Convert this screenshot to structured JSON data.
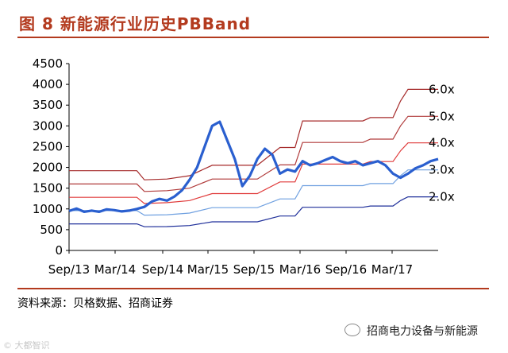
{
  "header": {
    "title": "图 8   新能源行业历史PBBand"
  },
  "footer": {
    "source": "资料来源：贝格数据、招商证券",
    "wechat_account": "招商电力设备与新能源",
    "watermark": "© 大都智识"
  },
  "chart_data": {
    "type": "line",
    "title": "",
    "xlabel": "",
    "ylabel": "",
    "ylim": [
      0,
      4500
    ],
    "yticks": [
      0,
      500,
      1000,
      1500,
      2000,
      2500,
      3000,
      3500,
      4000,
      4500
    ],
    "xticks": [
      "Sep/13",
      "Mar/14",
      "Sep/14",
      "Mar/15",
      "Sep/15",
      "Mar/16",
      "Sep/16",
      "Mar/17"
    ],
    "xrange": [
      "2013-09",
      "2017-10"
    ],
    "grid": false,
    "band_labels": [
      "6.0x",
      "5.0x",
      "4.0x",
      "3.0x",
      "2.0x"
    ],
    "bands": [
      {
        "name": "6.0x",
        "color": "#a52a2a",
        "points": [
          [
            "2013-09",
            1920
          ],
          [
            "2014-06",
            1920
          ],
          [
            "2014-07",
            1700
          ],
          [
            "2014-10",
            1720
          ],
          [
            "2015-01",
            1800
          ],
          [
            "2015-04",
            2050
          ],
          [
            "2015-10",
            2050
          ],
          [
            "2016-01",
            2480
          ],
          [
            "2016-03",
            2480
          ],
          [
            "2016-04",
            3120
          ],
          [
            "2016-12",
            3120
          ],
          [
            "2017-01",
            3200
          ],
          [
            "2017-04",
            3200
          ],
          [
            "2017-05",
            3600
          ],
          [
            "2017-06",
            3880
          ],
          [
            "2017-10",
            3880
          ]
        ]
      },
      {
        "name": "5.0x",
        "color": "#b03a3a",
        "points": [
          [
            "2013-09",
            1600
          ],
          [
            "2014-06",
            1600
          ],
          [
            "2014-07",
            1420
          ],
          [
            "2014-10",
            1440
          ],
          [
            "2015-01",
            1500
          ],
          [
            "2015-04",
            1720
          ],
          [
            "2015-10",
            1720
          ],
          [
            "2016-01",
            2060
          ],
          [
            "2016-03",
            2060
          ],
          [
            "2016-04",
            2600
          ],
          [
            "2016-12",
            2600
          ],
          [
            "2017-01",
            2680
          ],
          [
            "2017-04",
            2680
          ],
          [
            "2017-05",
            3000
          ],
          [
            "2017-06",
            3230
          ],
          [
            "2017-10",
            3230
          ]
        ]
      },
      {
        "name": "4.0x",
        "color": "#e03a3a",
        "points": [
          [
            "2013-09",
            1280
          ],
          [
            "2014-06",
            1280
          ],
          [
            "2014-07",
            1130
          ],
          [
            "2014-10",
            1150
          ],
          [
            "2015-01",
            1200
          ],
          [
            "2015-04",
            1370
          ],
          [
            "2015-10",
            1370
          ],
          [
            "2016-01",
            1650
          ],
          [
            "2016-03",
            1650
          ],
          [
            "2016-04",
            2080
          ],
          [
            "2016-12",
            2080
          ],
          [
            "2017-01",
            2140
          ],
          [
            "2017-04",
            2140
          ],
          [
            "2017-05",
            2400
          ],
          [
            "2017-06",
            2590
          ],
          [
            "2017-10",
            2590
          ]
        ]
      },
      {
        "name": "3.0x",
        "color": "#6fa0e0",
        "points": [
          [
            "2013-09",
            960
          ],
          [
            "2014-06",
            960
          ],
          [
            "2014-07",
            850
          ],
          [
            "2014-10",
            860
          ],
          [
            "2015-01",
            900
          ],
          [
            "2015-04",
            1030
          ],
          [
            "2015-10",
            1030
          ],
          [
            "2016-01",
            1240
          ],
          [
            "2016-03",
            1240
          ],
          [
            "2016-04",
            1560
          ],
          [
            "2016-12",
            1560
          ],
          [
            "2017-01",
            1610
          ],
          [
            "2017-04",
            1610
          ],
          [
            "2017-05",
            1800
          ],
          [
            "2017-06",
            1940
          ],
          [
            "2017-10",
            1940
          ]
        ]
      },
      {
        "name": "2.0x",
        "color": "#1f2f9a",
        "points": [
          [
            "2013-09",
            640
          ],
          [
            "2014-06",
            640
          ],
          [
            "2014-07",
            570
          ],
          [
            "2014-10",
            575
          ],
          [
            "2015-01",
            600
          ],
          [
            "2015-04",
            690
          ],
          [
            "2015-10",
            690
          ],
          [
            "2016-01",
            830
          ],
          [
            "2016-03",
            830
          ],
          [
            "2016-04",
            1040
          ],
          [
            "2016-12",
            1040
          ],
          [
            "2017-01",
            1070
          ],
          [
            "2017-04",
            1070
          ],
          [
            "2017-05",
            1200
          ],
          [
            "2017-06",
            1290
          ],
          [
            "2017-10",
            1290
          ]
        ]
      }
    ],
    "series": [
      {
        "name": "",
        "color": "#2a5fcf",
        "points": [
          [
            "2013-09",
            950
          ],
          [
            "2013-10",
            1010
          ],
          [
            "2013-11",
            930
          ],
          [
            "2013-12",
            960
          ],
          [
            "2014-01",
            930
          ],
          [
            "2014-02",
            990
          ],
          [
            "2014-03",
            970
          ],
          [
            "2014-04",
            940
          ],
          [
            "2014-05",
            960
          ],
          [
            "2014-06",
            1000
          ],
          [
            "2014-07",
            1050
          ],
          [
            "2014-08",
            1180
          ],
          [
            "2014-09",
            1240
          ],
          [
            "2014-10",
            1200
          ],
          [
            "2014-11",
            1300
          ],
          [
            "2014-12",
            1450
          ],
          [
            "2015-01",
            1700
          ],
          [
            "2015-02",
            2000
          ],
          [
            "2015-03",
            2500
          ],
          [
            "2015-04",
            3000
          ],
          [
            "2015-05",
            3100
          ],
          [
            "2015-06",
            2650
          ],
          [
            "2015-07",
            2200
          ],
          [
            "2015-08",
            1550
          ],
          [
            "2015-09",
            1800
          ],
          [
            "2015-10",
            2200
          ],
          [
            "2015-11",
            2450
          ],
          [
            "2015-12",
            2300
          ],
          [
            "2016-01",
            1850
          ],
          [
            "2016-02",
            1950
          ],
          [
            "2016-03",
            1900
          ],
          [
            "2016-04",
            2150
          ],
          [
            "2016-05",
            2050
          ],
          [
            "2016-06",
            2100
          ],
          [
            "2016-07",
            2180
          ],
          [
            "2016-08",
            2250
          ],
          [
            "2016-09",
            2150
          ],
          [
            "2016-10",
            2100
          ],
          [
            "2016-11",
            2150
          ],
          [
            "2016-12",
            2050
          ],
          [
            "2017-01",
            2100
          ],
          [
            "2017-02",
            2150
          ],
          [
            "2017-03",
            2050
          ],
          [
            "2017-04",
            1850
          ],
          [
            "2017-05",
            1750
          ],
          [
            "2017-06",
            1850
          ],
          [
            "2017-07",
            1980
          ],
          [
            "2017-08",
            2050
          ],
          [
            "2017-09",
            2150
          ],
          [
            "2017-10",
            2200
          ]
        ]
      }
    ]
  }
}
